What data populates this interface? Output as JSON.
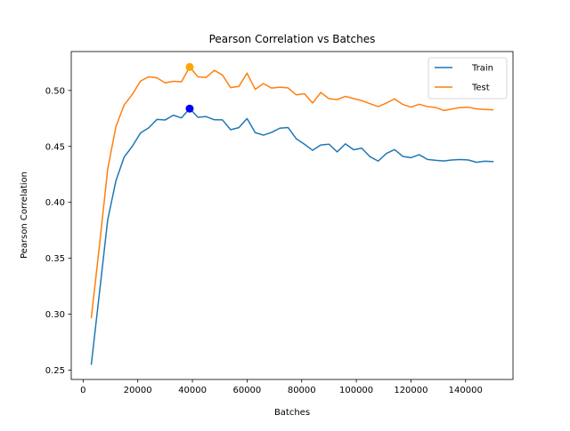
{
  "chart_data": {
    "type": "line",
    "title": "Pearson Correlation vs Batches",
    "xlabel": "Batches",
    "ylabel": "Pearson Correlation",
    "xlim": [
      -4350,
      157350
    ],
    "ylim": [
      0.2417,
      0.5348
    ],
    "xticks": [
      0,
      20000,
      40000,
      60000,
      80000,
      100000,
      120000,
      140000
    ],
    "xtick_labels": [
      "0",
      "20000",
      "40000",
      "60000",
      "80000",
      "100000",
      "120000",
      "140000"
    ],
    "yticks": [
      0.25,
      0.3,
      0.35,
      0.4,
      0.45,
      0.5
    ],
    "ytick_labels": [
      "0.25",
      "0.30",
      "0.35",
      "0.40",
      "0.45",
      "0.50"
    ],
    "grid": false,
    "legend_position": "top-right",
    "x": [
      3000,
      6000,
      9000,
      12000,
      15000,
      18000,
      21000,
      24000,
      27000,
      30000,
      33000,
      36000,
      39000,
      42000,
      45000,
      48000,
      51000,
      54000,
      57000,
      60000,
      63000,
      66000,
      69000,
      72000,
      75000,
      78000,
      81000,
      84000,
      87000,
      90000,
      93000,
      96000,
      99000,
      102000,
      105000,
      108000,
      111000,
      114000,
      117000,
      120000,
      123000,
      126000,
      129000,
      132000,
      135000,
      138000,
      141000,
      144000,
      147000,
      150000
    ],
    "series": [
      {
        "name": "Train",
        "color": "#1f77b4",
        "values": [
          0.2554,
          0.3197,
          0.3844,
          0.4192,
          0.4404,
          0.4501,
          0.462,
          0.4666,
          0.4741,
          0.4736,
          0.4779,
          0.4755,
          0.4838,
          0.476,
          0.4767,
          0.4738,
          0.4737,
          0.4649,
          0.4668,
          0.4749,
          0.4623,
          0.4601,
          0.4626,
          0.4663,
          0.4669,
          0.4569,
          0.452,
          0.4465,
          0.4513,
          0.452,
          0.4451,
          0.4523,
          0.447,
          0.4484,
          0.4408,
          0.4369,
          0.4437,
          0.4472,
          0.4411,
          0.4399,
          0.4426,
          0.4384,
          0.4376,
          0.437,
          0.4379,
          0.4383,
          0.4379,
          0.4358,
          0.4368,
          0.4364
        ]
      },
      {
        "name": "Test",
        "color": "#ff7f0e",
        "values": [
          0.297,
          0.362,
          0.4299,
          0.4677,
          0.487,
          0.4965,
          0.5084,
          0.5123,
          0.5114,
          0.5068,
          0.5082,
          0.5078,
          0.521,
          0.5122,
          0.5116,
          0.518,
          0.5138,
          0.5025,
          0.5036,
          0.5155,
          0.501,
          0.5062,
          0.5021,
          0.5029,
          0.5023,
          0.4961,
          0.4971,
          0.4888,
          0.4982,
          0.4926,
          0.4919,
          0.4947,
          0.4928,
          0.4909,
          0.4882,
          0.4856,
          0.4888,
          0.4925,
          0.4875,
          0.4851,
          0.4877,
          0.4856,
          0.4849,
          0.4821,
          0.4835,
          0.4848,
          0.485,
          0.4836,
          0.4831,
          0.4827
        ]
      }
    ],
    "markers": [
      {
        "series": "Train",
        "x": 39000,
        "y": 0.4838,
        "color": "#0000ff"
      },
      {
        "series": "Test",
        "x": 39000,
        "y": 0.521,
        "color": "#ffa500"
      }
    ]
  }
}
